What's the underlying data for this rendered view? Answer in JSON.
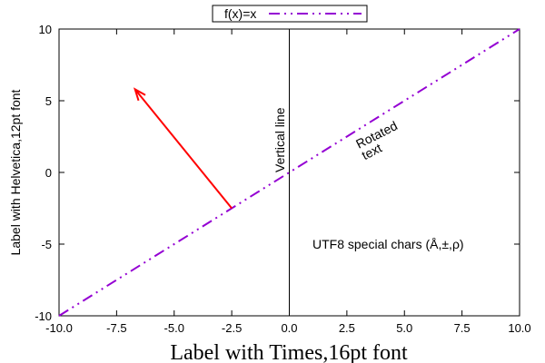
{
  "chart_data": {
    "type": "line",
    "xlabel": "Label with Times,16pt font",
    "ylabel": "Label with Helvetica,12pt font",
    "xlim": [
      -10,
      10
    ],
    "ylim": [
      -10,
      10
    ],
    "x_ticks": [
      "-10.0",
      "-7.5",
      "-5.0",
      "-2.5",
      "0.0",
      "2.5",
      "5.0",
      "7.5",
      "10.0"
    ],
    "y_ticks": [
      "-10",
      "-5",
      "0",
      "5",
      "10"
    ],
    "grid": false,
    "legend": {
      "position": "top-center",
      "entries": [
        "f(x)=x"
      ]
    },
    "series": [
      {
        "name": "f(x)=x",
        "color": "#9400d3",
        "style": "dash-dot-dot",
        "x": [
          -10,
          10
        ],
        "y": [
          -10,
          10
        ]
      }
    ],
    "arrow": {
      "from": [
        -2.5,
        -2.5
      ],
      "to": [
        -6.7,
        5.8
      ],
      "color": "#ff0000"
    },
    "vertical_line": {
      "x": 0
    },
    "annotations": {
      "vertical_line_label": "Vertical line",
      "rotated_text_line1": "Rotated",
      "rotated_text_line2": "text",
      "utf8_text": "UTF8 special chars (Å,±,ρ)"
    }
  }
}
